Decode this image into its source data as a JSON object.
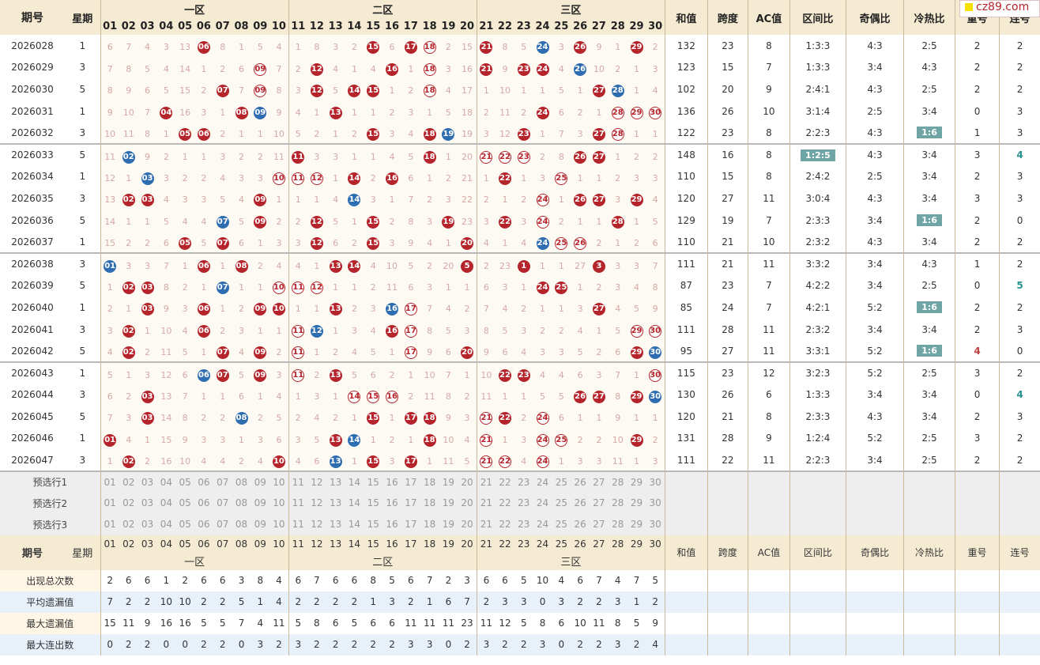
{
  "header": {
    "issue_label": "期号",
    "week_label": "星期",
    "zones": [
      "一区",
      "二区",
      "三区"
    ],
    "stats": [
      "和值",
      "跨度",
      "AC值",
      "区间比",
      "奇偶比",
      "冷热比",
      "重号",
      "连号"
    ]
  },
  "numbers": [
    "01",
    "02",
    "03",
    "04",
    "05",
    "06",
    "07",
    "08",
    "09",
    "10",
    "11",
    "12",
    "13",
    "14",
    "15",
    "16",
    "17",
    "18",
    "19",
    "20",
    "21",
    "22",
    "23",
    "24",
    "25",
    "26",
    "27",
    "28",
    "29",
    "30"
  ],
  "rows": [
    {
      "issue": "2026028",
      "week": "1",
      "cells": [
        "6",
        "7",
        "4",
        "3",
        "13",
        "06",
        "8",
        "1",
        "5",
        "4",
        "1",
        "8",
        "3",
        "2",
        "15",
        "6",
        "17",
        "18",
        "2",
        "15",
        "21",
        "8",
        "5",
        "24",
        "3",
        "26",
        "9",
        "1",
        "29",
        "2"
      ],
      "hits": [
        6,
        15,
        17,
        18,
        21,
        24,
        26,
        29
      ],
      "blue": [
        24
      ],
      "ring": [
        18
      ],
      "sum": "132",
      "span": "23",
      "ac": "8",
      "zone": "1:3:3",
      "oe": "4:3",
      "ch": "2:5",
      "rep": "2",
      "con": "2"
    },
    {
      "issue": "2026029",
      "week": "3",
      "cells": [
        "7",
        "8",
        "5",
        "4",
        "14",
        "1",
        "2",
        "6",
        "09",
        "7",
        "2",
        "12",
        "4",
        "1",
        "4",
        "16",
        "1",
        "18",
        "3",
        "16",
        "21",
        "9",
        "23",
        "24",
        "4",
        "26",
        "10",
        "2",
        "1",
        "3"
      ],
      "hits": [
        9,
        12,
        16,
        18,
        21,
        23,
        24,
        26
      ],
      "blue": [
        26
      ],
      "ring": [
        9,
        18
      ],
      "sum": "123",
      "span": "15",
      "ac": "7",
      "zone": "1:3:3",
      "oe": "3:4",
      "ch": "4:3",
      "rep": "2",
      "con": "2"
    },
    {
      "issue": "2026030",
      "week": "5",
      "cells": [
        "8",
        "9",
        "6",
        "5",
        "15",
        "2",
        "07",
        "7",
        "09",
        "8",
        "3",
        "12",
        "5",
        "14",
        "15",
        "1",
        "2",
        "18",
        "4",
        "17",
        "1",
        "10",
        "1",
        "1",
        "5",
        "1",
        "27",
        "28",
        "1",
        "4"
      ],
      "hits": [
        7,
        9,
        12,
        14,
        15,
        18,
        27,
        28
      ],
      "blue": [
        28
      ],
      "ring": [
        9,
        18
      ],
      "sum": "102",
      "span": "20",
      "ac": "9",
      "zone": "2:4:1",
      "oe": "4:3",
      "ch": "2:5",
      "rep": "2",
      "con": "2"
    },
    {
      "issue": "2026031",
      "week": "1",
      "cells": [
        "9",
        "10",
        "7",
        "04",
        "16",
        "3",
        "1",
        "08",
        "09",
        "9",
        "4",
        "1",
        "13",
        "1",
        "1",
        "2",
        "3",
        "1",
        "5",
        "18",
        "2",
        "11",
        "2",
        "24",
        "6",
        "2",
        "1",
        "28",
        "29",
        "30"
      ],
      "hits": [
        4,
        8,
        9,
        13,
        24,
        28,
        29,
        30
      ],
      "blue": [
        9
      ],
      "ring": [
        28,
        29,
        30
      ],
      "sum": "136",
      "span": "26",
      "ac": "10",
      "zone": "3:1:4",
      "oe": "2:5",
      "ch": "3:4",
      "rep": "0",
      "con": "3"
    },
    {
      "issue": "2026032",
      "week": "3",
      "cells": [
        "10",
        "11",
        "8",
        "1",
        "05",
        "06",
        "2",
        "1",
        "1",
        "10",
        "5",
        "2",
        "1",
        "2",
        "15",
        "3",
        "4",
        "18",
        "19",
        "19",
        "3",
        "12",
        "23",
        "1",
        "7",
        "3",
        "27",
        "28",
        "1",
        "1"
      ],
      "hits": [
        5,
        6,
        15,
        18,
        19,
        23,
        27,
        28
      ],
      "blue": [
        19
      ],
      "ring": [
        28
      ],
      "sum": "122",
      "span": "23",
      "ac": "8",
      "zone": "2:2:3",
      "oe": "4:3",
      "ch": "1:6",
      "chbox": true,
      "rep": "1",
      "con": "3"
    },
    {
      "issue": "2026033",
      "week": "5",
      "cells": [
        "11",
        "02",
        "9",
        "2",
        "1",
        "1",
        "3",
        "2",
        "2",
        "11",
        "11",
        "3",
        "3",
        "1",
        "1",
        "4",
        "5",
        "18",
        "1",
        "20",
        "21",
        "22",
        "23",
        "2",
        "8",
        "26",
        "27",
        "1",
        "2",
        "2"
      ],
      "hits": [
        2,
        11,
        18,
        21,
        22,
        23,
        26,
        27
      ],
      "blue": [
        2
      ],
      "ring": [
        21,
        22,
        23
      ],
      "sum": "148",
      "span": "16",
      "ac": "8",
      "zone": "1:2:5",
      "zonebox": true,
      "oe": "4:3",
      "ch": "3:4",
      "rep": "3",
      "con": "4",
      "conteal": true
    },
    {
      "issue": "2026034",
      "week": "1",
      "cells": [
        "12",
        "1",
        "03",
        "3",
        "2",
        "2",
        "4",
        "3",
        "3",
        "10",
        "11",
        "12",
        "1",
        "14",
        "2",
        "16",
        "6",
        "1",
        "2",
        "21",
        "1",
        "22",
        "1",
        "3",
        "25",
        "1",
        "1",
        "2",
        "3",
        "3"
      ],
      "hits": [
        3,
        10,
        11,
        12,
        14,
        16,
        22,
        25
      ],
      "blue": [
        3
      ],
      "ring": [
        10,
        11,
        12,
        25
      ],
      "sum": "110",
      "span": "15",
      "ac": "8",
      "zone": "2:4:2",
      "oe": "2:5",
      "ch": "3:4",
      "rep": "2",
      "con": "3"
    },
    {
      "issue": "2026035",
      "week": "3",
      "cells": [
        "13",
        "02",
        "03",
        "4",
        "3",
        "3",
        "5",
        "4",
        "09",
        "1",
        "1",
        "1",
        "4",
        "14",
        "3",
        "1",
        "7",
        "2",
        "3",
        "22",
        "2",
        "1",
        "2",
        "24",
        "1",
        "26",
        "27",
        "3",
        "29",
        "4"
      ],
      "hits": [
        2,
        3,
        9,
        14,
        24,
        26,
        27,
        29
      ],
      "blue": [
        14
      ],
      "ring": [
        24
      ],
      "sum": "120",
      "span": "27",
      "ac": "11",
      "zone": "3:0:4",
      "oe": "4:3",
      "ch": "3:4",
      "rep": "3",
      "con": "3"
    },
    {
      "issue": "2026036",
      "week": "5",
      "cells": [
        "14",
        "1",
        "1",
        "5",
        "4",
        "4",
        "07",
        "5",
        "09",
        "2",
        "2",
        "12",
        "5",
        "1",
        "15",
        "2",
        "8",
        "3",
        "19",
        "23",
        "3",
        "22",
        "3",
        "24",
        "2",
        "1",
        "1",
        "28",
        "1",
        "5"
      ],
      "hits": [
        7,
        9,
        12,
        15,
        19,
        22,
        24,
        28
      ],
      "blue": [
        7
      ],
      "ring": [
        24
      ],
      "sum": "129",
      "span": "19",
      "ac": "7",
      "zone": "2:3:3",
      "oe": "3:4",
      "ch": "1:6",
      "chbox": true,
      "rep": "2",
      "con": "0"
    },
    {
      "issue": "2026037",
      "week": "1",
      "cells": [
        "15",
        "2",
        "2",
        "6",
        "05",
        "5",
        "07",
        "6",
        "1",
        "3",
        "3",
        "12",
        "6",
        "2",
        "15",
        "3",
        "9",
        "4",
        "1",
        "20",
        "4",
        "1",
        "4",
        "24",
        "25",
        "26",
        "2",
        "1",
        "2",
        "6"
      ],
      "hits": [
        5,
        7,
        12,
        15,
        20,
        24,
        25,
        26
      ],
      "blue": [
        24
      ],
      "ring": [
        25,
        26
      ],
      "sum": "110",
      "span": "21",
      "ac": "10",
      "zone": "2:3:2",
      "oe": "4:3",
      "ch": "3:4",
      "rep": "2",
      "con": "2"
    },
    {
      "issue": "2026038",
      "week": "3",
      "cells": [
        "01",
        "3",
        "3",
        "7",
        "1",
        "06",
        "1",
        "08",
        "2",
        "4",
        "4",
        "1",
        "13",
        "14",
        "4",
        "10",
        "5",
        "2",
        "20",
        "5",
        "2",
        "23",
        "1",
        "1",
        "1",
        "27",
        "3",
        "3",
        "3",
        "7"
      ],
      "hits": [
        1,
        6,
        8,
        13,
        14,
        20,
        23,
        27
      ],
      "blue": [
        1
      ],
      "ring": [],
      "sum": "111",
      "span": "21",
      "ac": "11",
      "zone": "3:3:2",
      "oe": "3:4",
      "ch": "4:3",
      "rep": "1",
      "con": "2"
    },
    {
      "issue": "2026039",
      "week": "5",
      "cells": [
        "1",
        "02",
        "03",
        "8",
        "2",
        "1",
        "07",
        "1",
        "1",
        "10",
        "11",
        "12",
        "1",
        "1",
        "2",
        "11",
        "6",
        "3",
        "1",
        "1",
        "6",
        "3",
        "1",
        "24",
        "25",
        "1",
        "2",
        "3",
        "4",
        "8"
      ],
      "hits": [
        2,
        3,
        7,
        10,
        11,
        12,
        24,
        25
      ],
      "blue": [
        7
      ],
      "ring": [
        10,
        11,
        12
      ],
      "sum": "87",
      "span": "23",
      "ac": "7",
      "zone": "4:2:2",
      "oe": "3:4",
      "ch": "2:5",
      "rep": "0",
      "con": "5",
      "conteal": true
    },
    {
      "issue": "2026040",
      "week": "1",
      "cells": [
        "2",
        "1",
        "03",
        "9",
        "3",
        "06",
        "1",
        "2",
        "09",
        "10",
        "1",
        "1",
        "13",
        "2",
        "3",
        "16",
        "17",
        "7",
        "4",
        "2",
        "7",
        "4",
        "2",
        "1",
        "1",
        "3",
        "27",
        "4",
        "5",
        "9"
      ],
      "hits": [
        3,
        6,
        9,
        10,
        13,
        16,
        17,
        27
      ],
      "blue": [
        16
      ],
      "ring": [
        17
      ],
      "sum": "85",
      "span": "24",
      "ac": "7",
      "zone": "4:2:1",
      "oe": "5:2",
      "ch": "1:6",
      "chbox": true,
      "rep": "2",
      "con": "2"
    },
    {
      "issue": "2026041",
      "week": "3",
      "cells": [
        "3",
        "02",
        "1",
        "10",
        "4",
        "06",
        "2",
        "3",
        "1",
        "1",
        "11",
        "12",
        "1",
        "3",
        "4",
        "16",
        "17",
        "8",
        "5",
        "3",
        "8",
        "5",
        "3",
        "2",
        "2",
        "4",
        "1",
        "5",
        "29",
        "30"
      ],
      "hits": [
        2,
        6,
        11,
        12,
        16,
        17,
        29,
        30
      ],
      "blue": [
        12
      ],
      "ring": [
        11,
        17,
        29,
        30
      ],
      "sum": "111",
      "span": "28",
      "ac": "11",
      "zone": "2:3:2",
      "oe": "3:4",
      "ch": "3:4",
      "rep": "2",
      "con": "3"
    },
    {
      "issue": "2026042",
      "week": "5",
      "cells": [
        "4",
        "02",
        "2",
        "11",
        "5",
        "1",
        "07",
        "4",
        "09",
        "2",
        "11",
        "1",
        "2",
        "4",
        "5",
        "1",
        "17",
        "9",
        "6",
        "20",
        "9",
        "6",
        "4",
        "3",
        "3",
        "5",
        "2",
        "6",
        "29",
        "30"
      ],
      "hits": [
        2,
        7,
        9,
        11,
        17,
        20,
        29,
        30
      ],
      "blue": [
        30
      ],
      "ring": [
        11,
        17
      ],
      "sum": "95",
      "span": "27",
      "ac": "11",
      "zone": "3:3:1",
      "oe": "5:2",
      "ch": "1:6",
      "chbox": true,
      "rep": "4",
      "repred": true,
      "con": "0"
    },
    {
      "issue": "2026043",
      "week": "1",
      "cells": [
        "5",
        "1",
        "3",
        "12",
        "6",
        "06",
        "07",
        "5",
        "09",
        "3",
        "11",
        "2",
        "13",
        "5",
        "6",
        "2",
        "1",
        "10",
        "7",
        "1",
        "10",
        "22",
        "23",
        "4",
        "4",
        "6",
        "3",
        "7",
        "1",
        "30"
      ],
      "hits": [
        6,
        7,
        9,
        11,
        13,
        22,
        23,
        30
      ],
      "blue": [
        6
      ],
      "ring": [
        11,
        30
      ],
      "sum": "115",
      "span": "23",
      "ac": "12",
      "zone": "3:2:3",
      "oe": "5:2",
      "ch": "2:5",
      "rep": "3",
      "con": "2"
    },
    {
      "issue": "2026044",
      "week": "3",
      "cells": [
        "6",
        "2",
        "03",
        "13",
        "7",
        "1",
        "1",
        "6",
        "1",
        "4",
        "1",
        "3",
        "1",
        "14",
        "15",
        "16",
        "2",
        "11",
        "8",
        "2",
        "11",
        "1",
        "1",
        "5",
        "5",
        "26",
        "27",
        "8",
        "29",
        "30"
      ],
      "hits": [
        3,
        14,
        15,
        16,
        26,
        27,
        29,
        30
      ],
      "blue": [
        30
      ],
      "ring": [
        14,
        15,
        16
      ],
      "sum": "130",
      "span": "26",
      "ac": "6",
      "zone": "1:3:3",
      "oe": "3:4",
      "ch": "3:4",
      "rep": "0",
      "con": "4",
      "conteal": true
    },
    {
      "issue": "2026045",
      "week": "5",
      "cells": [
        "7",
        "3",
        "03",
        "14",
        "8",
        "2",
        "2",
        "08",
        "2",
        "5",
        "2",
        "4",
        "2",
        "1",
        "15",
        "1",
        "17",
        "18",
        "9",
        "3",
        "21",
        "22",
        "2",
        "24",
        "6",
        "1",
        "1",
        "9",
        "1",
        "1"
      ],
      "hits": [
        3,
        8,
        15,
        17,
        18,
        21,
        22,
        24
      ],
      "blue": [
        8
      ],
      "ring": [
        21,
        24
      ],
      "sum": "120",
      "span": "21",
      "ac": "8",
      "zone": "2:3:3",
      "oe": "4:3",
      "ch": "3:4",
      "rep": "2",
      "con": "3"
    },
    {
      "issue": "2026046",
      "week": "1",
      "cells": [
        "01",
        "4",
        "1",
        "15",
        "9",
        "3",
        "3",
        "1",
        "3",
        "6",
        "3",
        "5",
        "13",
        "14",
        "1",
        "2",
        "1",
        "18",
        "10",
        "4",
        "21",
        "1",
        "3",
        "24",
        "25",
        "2",
        "2",
        "10",
        "29",
        "2"
      ],
      "hits": [
        1,
        13,
        14,
        18,
        21,
        24,
        25,
        29
      ],
      "blue": [
        14
      ],
      "ring": [
        21,
        24,
        25
      ],
      "sum": "131",
      "span": "28",
      "ac": "9",
      "zone": "1:2:4",
      "oe": "5:2",
      "ch": "2:5",
      "rep": "3",
      "con": "2"
    },
    {
      "issue": "2026047",
      "week": "3",
      "cells": [
        "1",
        "02",
        "2",
        "16",
        "10",
        "4",
        "4",
        "2",
        "4",
        "10",
        "4",
        "6",
        "13",
        "1",
        "15",
        "3",
        "17",
        "1",
        "11",
        "5",
        "21",
        "22",
        "4",
        "24",
        "1",
        "3",
        "3",
        "11",
        "1",
        "3"
      ],
      "hits": [
        2,
        10,
        13,
        15,
        17,
        21,
        22,
        24
      ],
      "blue": [
        13
      ],
      "ring": [
        21,
        22,
        24
      ],
      "sum": "111",
      "span": "22",
      "ac": "11",
      "zone": "2:2:3",
      "oe": "3:4",
      "ch": "2:5",
      "rep": "2",
      "con": "2"
    }
  ],
  "preselect": [
    "预选行1",
    "预选行2",
    "预选行3"
  ],
  "stat_rows": [
    {
      "label": "出现总次数",
      "values": [
        "2",
        "6",
        "6",
        "1",
        "2",
        "6",
        "6",
        "3",
        "8",
        "4",
        "6",
        "7",
        "6",
        "6",
        "8",
        "5",
        "6",
        "7",
        "2",
        "3",
        "6",
        "6",
        "5",
        "10",
        "4",
        "6",
        "7",
        "4",
        "7",
        "5"
      ]
    },
    {
      "label": "平均遗漏值",
      "values": [
        "7",
        "2",
        "2",
        "10",
        "10",
        "2",
        "2",
        "5",
        "1",
        "4",
        "2",
        "2",
        "2",
        "2",
        "1",
        "3",
        "2",
        "1",
        "6",
        "7",
        "2",
        "3",
        "3",
        "0",
        "3",
        "2",
        "2",
        "3",
        "1",
        "2"
      ]
    },
    {
      "label": "最大遗漏值",
      "values": [
        "15",
        "11",
        "9",
        "16",
        "16",
        "5",
        "5",
        "7",
        "4",
        "11",
        "5",
        "8",
        "6",
        "5",
        "6",
        "6",
        "11",
        "11",
        "11",
        "23",
        "11",
        "12",
        "5",
        "8",
        "6",
        "10",
        "11",
        "8",
        "5",
        "9"
      ]
    },
    {
      "label": "最大连出数",
      "values": [
        "0",
        "2",
        "2",
        "0",
        "0",
        "2",
        "2",
        "0",
        "3",
        "2",
        "3",
        "2",
        "2",
        "2",
        "2",
        "2",
        "3",
        "3",
        "0",
        "2",
        "3",
        "2",
        "2",
        "3",
        "0",
        "2",
        "2",
        "3",
        "2",
        "4"
      ]
    }
  ],
  "logo": {
    "text": "cz89.com"
  }
}
